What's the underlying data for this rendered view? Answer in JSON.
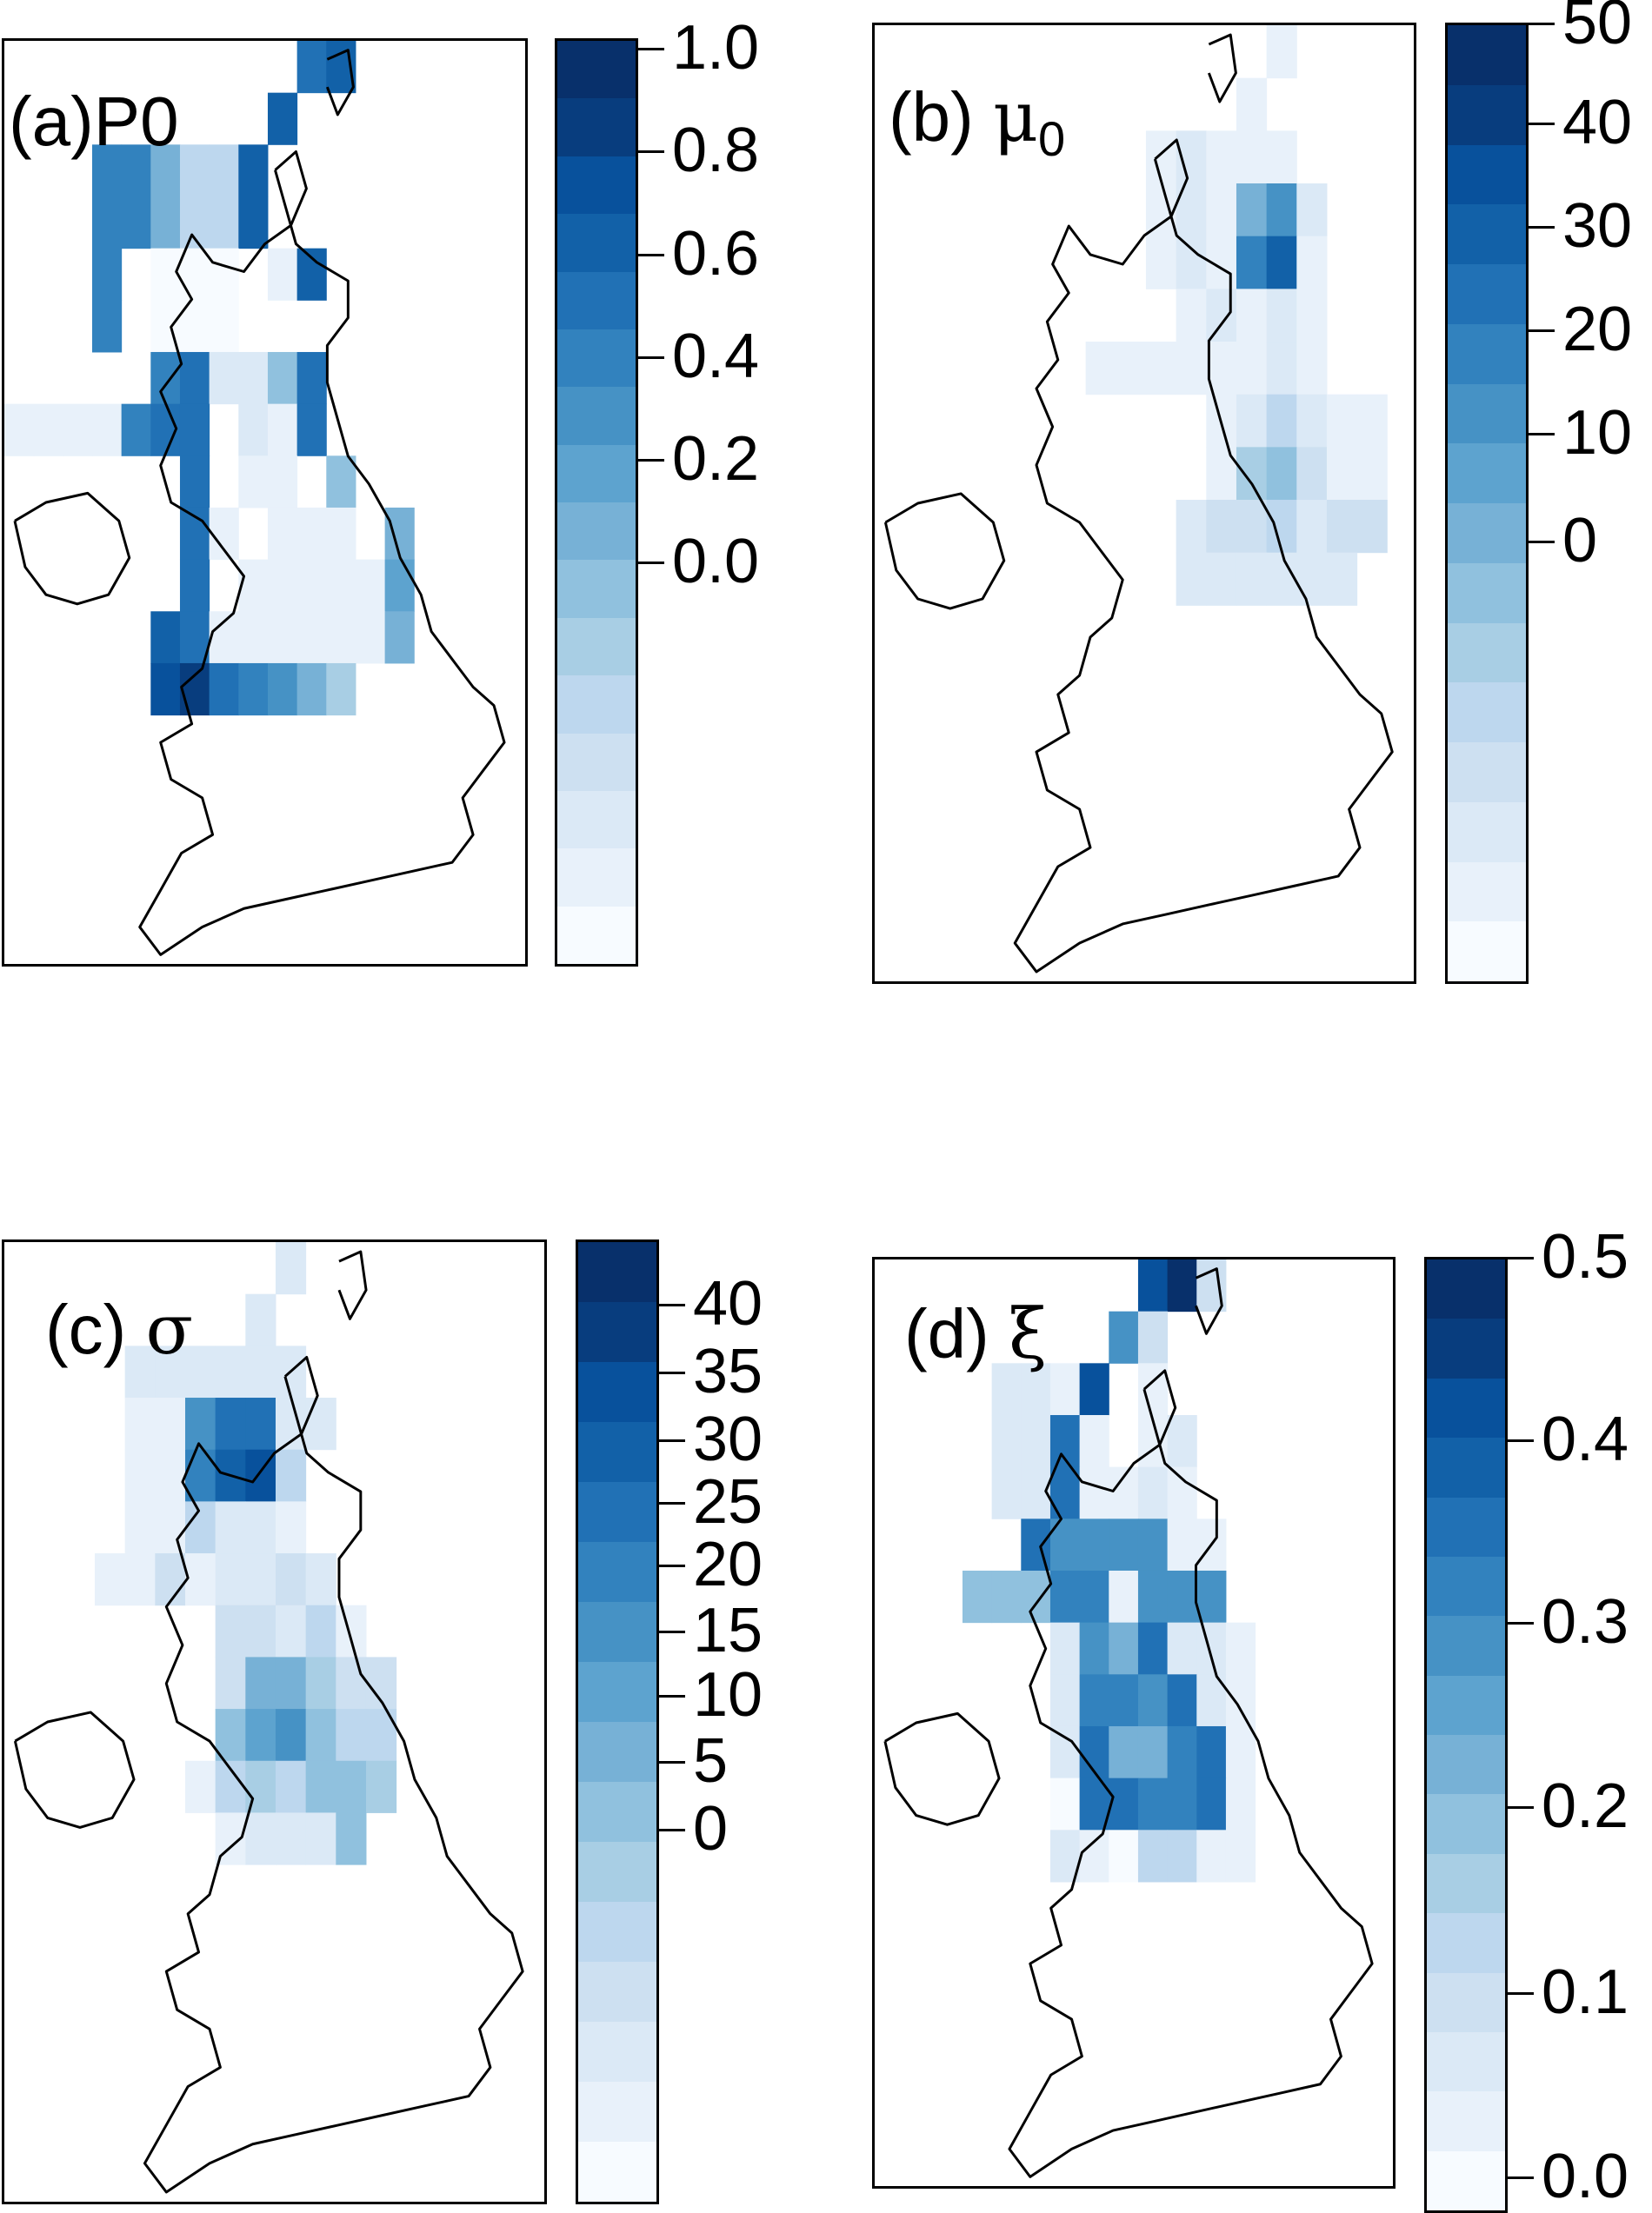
{
  "panels": [
    {
      "id": "a",
      "label_prefix": "(a)",
      "label_symbol": "P0",
      "colorbar_ticks": [
        "1.0",
        "0.8",
        "0.6",
        "0.4",
        "0.2",
        "0.0"
      ]
    },
    {
      "id": "b",
      "label_prefix": "(b)",
      "label_symbol": "μ",
      "label_subscript": "0",
      "colorbar_ticks": [
        "50",
        "40",
        "30",
        "20",
        "10",
        "0"
      ]
    },
    {
      "id": "c",
      "label_prefix": "(c)",
      "label_symbol": "σ",
      "colorbar_ticks": [
        "40",
        "35",
        "30",
        "25",
        "20",
        "15",
        "10",
        "5",
        "0"
      ]
    },
    {
      "id": "d",
      "label_prefix": "(d)",
      "label_symbol": "ξ",
      "colorbar_ticks": [
        "0.5",
        "0.4",
        "0.3",
        "0.2",
        "0.1",
        "0.0"
      ]
    }
  ],
  "palette": [
    "#f7fbff",
    "#e8f1fa",
    "#dbe9f6",
    "#cde0f1",
    "#bdd7ee",
    "#a8cee4",
    "#90c1de",
    "#77b1d6",
    "#5da3cf",
    "#4692c5",
    "#3282be",
    "#2171b5",
    "#1261a8",
    "#08519c",
    "#083d7e",
    "#08306b"
  ],
  "grids": {
    "a": [
      "..........LM....",
      ".........M......",
      "...KKHEEM........",
      "...KKHEEM........",
      "...K.AAA.BM......",
      "...K.AAA........",
      ".....KLCCGL......",
      "BBBBKLL.CBL......",
      "......L.BB.G.....",
      "......LB.BBB.H...",
      "......L.BBBBBI...",
      ".....MLBBBBBBH...",
      ".....NOLKJHF....."
    ],
    "b": [
      "......B...",
      ".....B....",
      "..BCBBB....",
      "..BCBHJC...",
      "..BCBKMB...",
      "...BCBCB...",
      "BBBBBBCB...",
      "....BCECBB",
      "....BFGDBB",
      "...CDDECDD",
      "...CCCCCC."
    ],
    "c": [
      "......C...",
      ".....C....",
      ".CCCCCC...",
      ".BBJLLCC..",
      ".BBKMNE...",
      ".BBECCB...",
      "BBDBCCDC..",
      "....DDCEB.",
      "....DHHFDD",
      "....GIJGEE",
      "...BEFEGGF",
      "....BCCCG."
    ],
    "d": [
      "......NPD.",
      ".....JD...",
      ".CCBN.B...",
      ".CCLB.BC..",
      ".CCLBBCB..",
      "..LJJJJBB.",
      "GGGKKBJJJ.",
      "...CJHLCCB",
      "...CKKJLCB",
      "...CLHHKLB",
      "...ALLKKLB",
      "...CBAEEBB"
    ]
  }
}
